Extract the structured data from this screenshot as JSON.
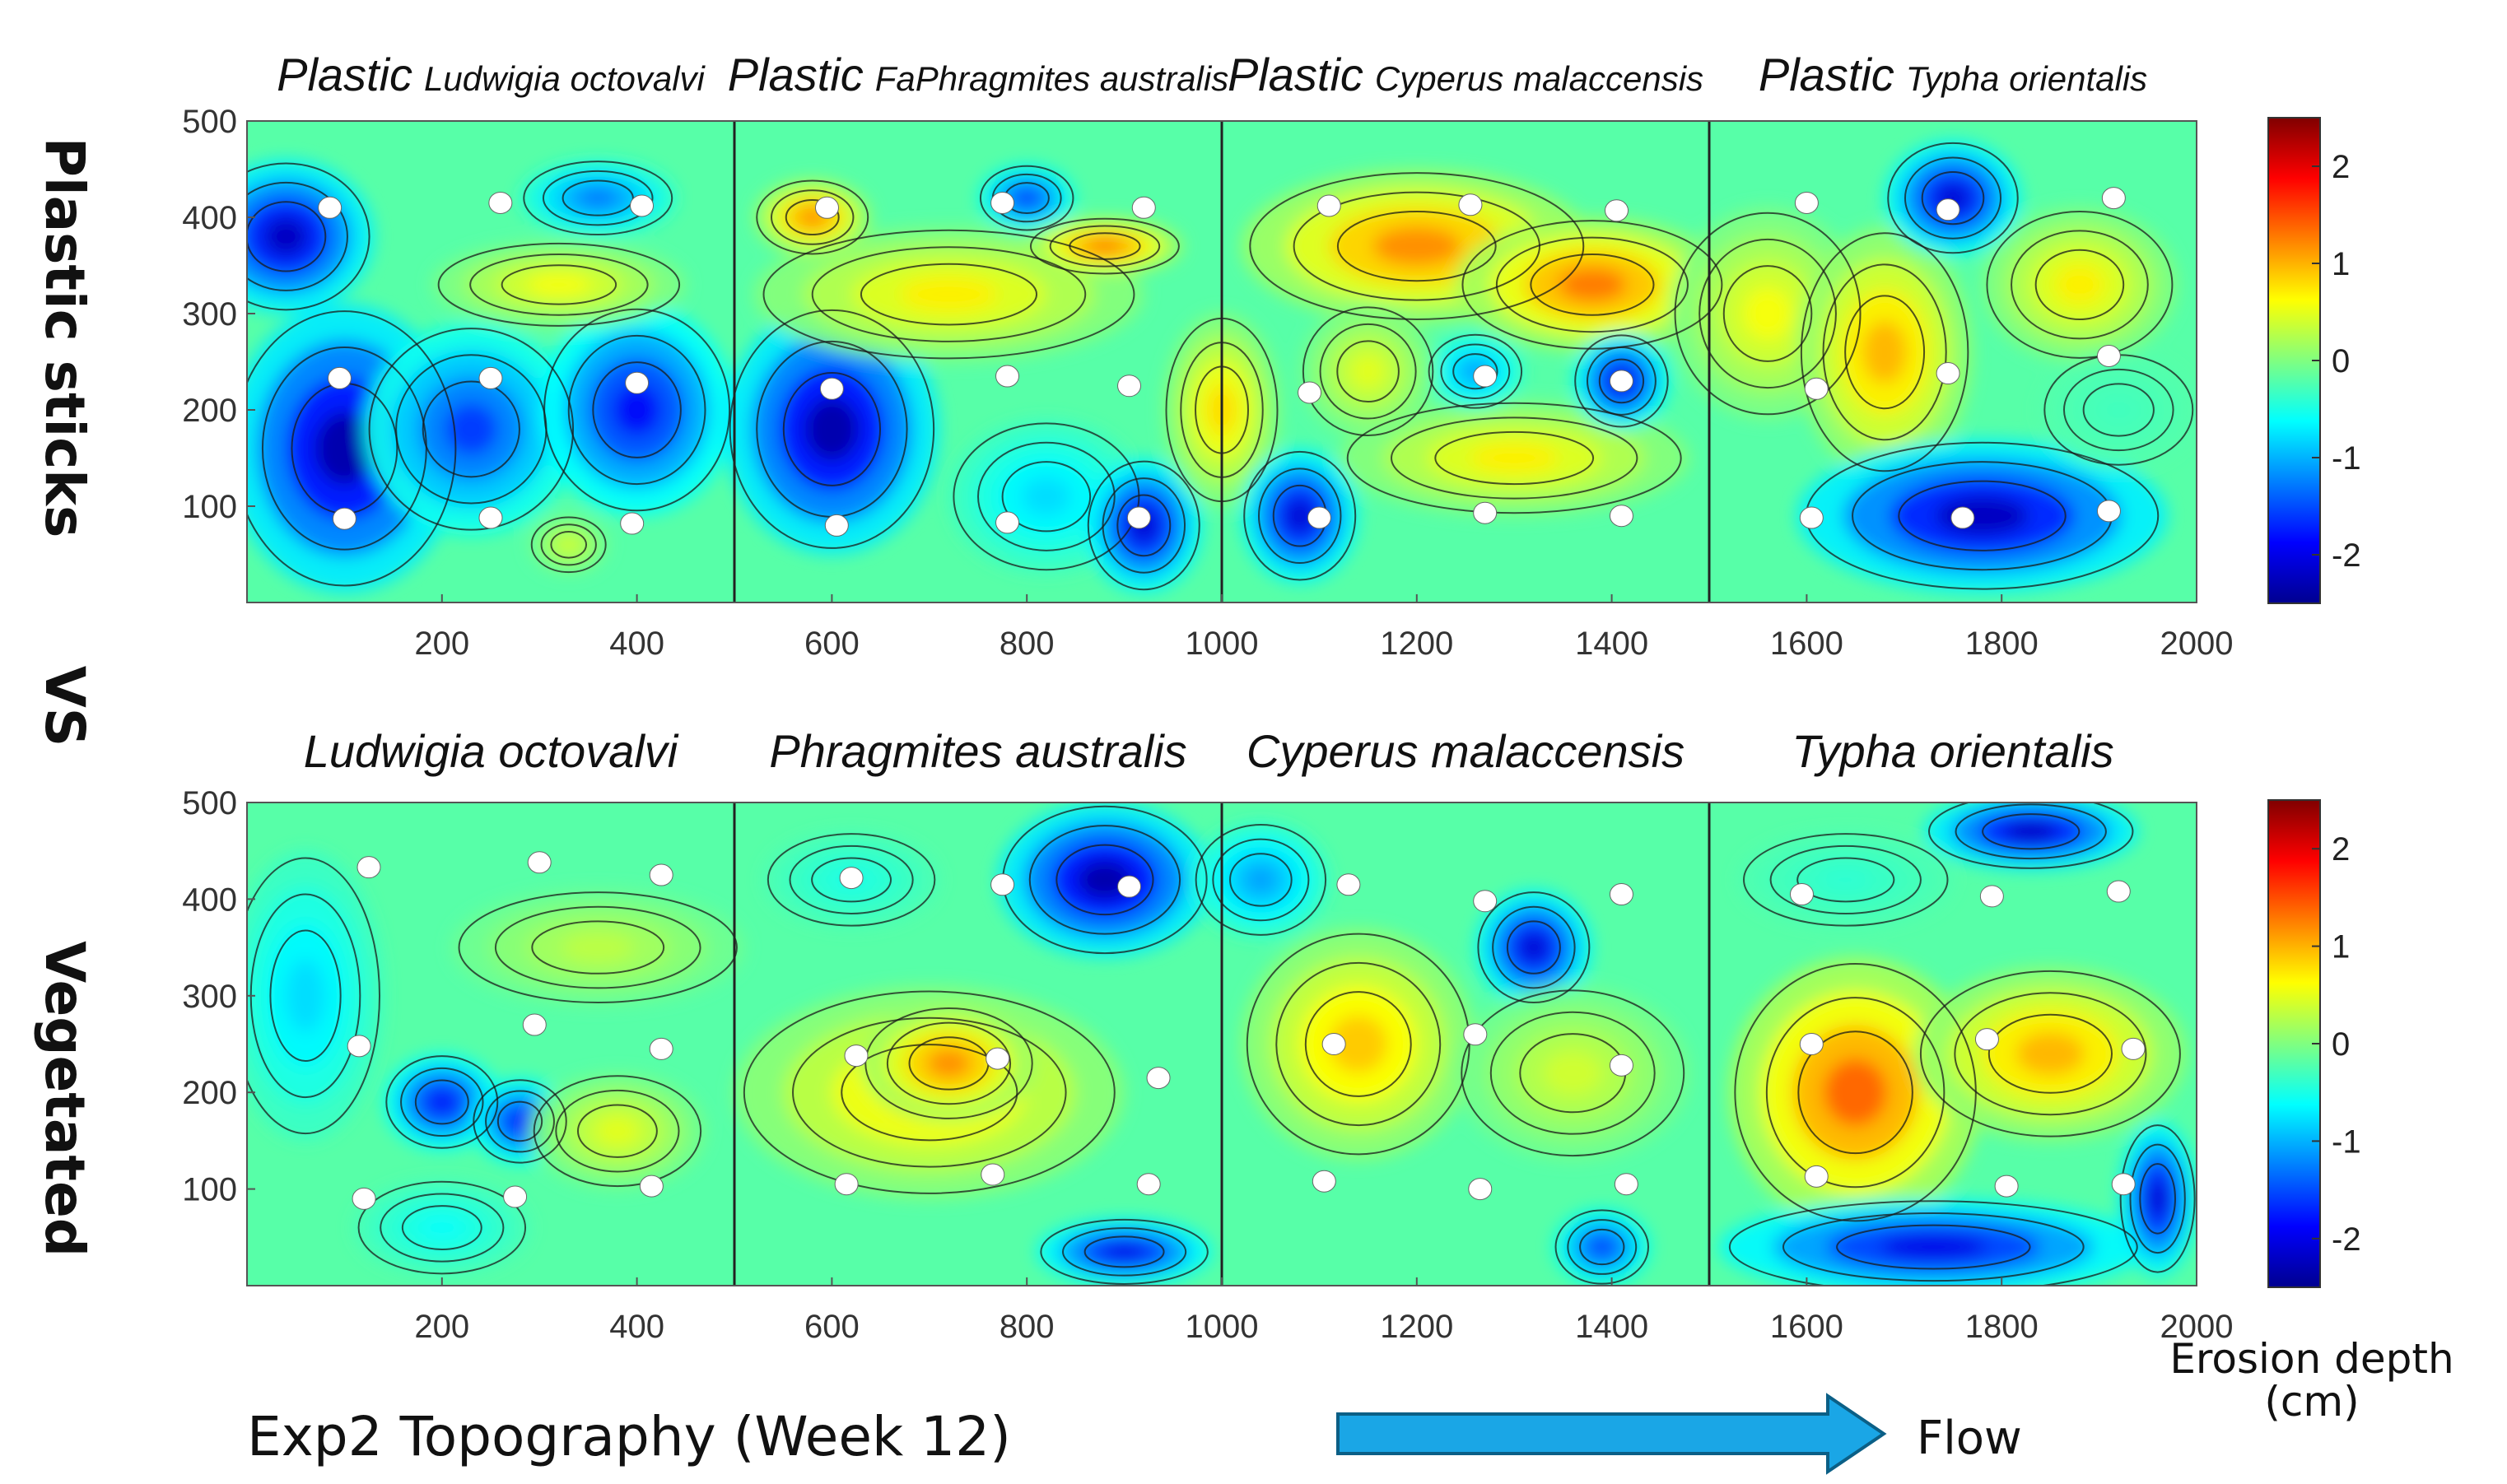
{
  "colors": {
    "flow_arrow": "#1aa6e6",
    "flow_arrow_stroke": "#0b5f86",
    "colormap": "jet"
  },
  "labels": {
    "row_top": "Plastic sticks",
    "vs": "VS",
    "row_bottom": "Vegetated",
    "figure_title": "Exp2 Topography (Week 12)",
    "flow": "Flow",
    "colorbar_line1": "Erosion depth",
    "colorbar_line2": "(cm)"
  },
  "chart_data": [
    {
      "type": "heatmap",
      "id": "plastic",
      "plot_type": "filled contour",
      "xlim": [
        0,
        2000
      ],
      "ylim": [
        0,
        500
      ],
      "xticks": [
        200,
        400,
        600,
        800,
        1000,
        1200,
        1400,
        1600,
        1800,
        2000
      ],
      "yticks": [
        100,
        200,
        300,
        400,
        500
      ],
      "panel_dividers_x": [
        500,
        1000,
        1500
      ],
      "section_titles": [
        {
          "prefix": "Plastic",
          "species": "Ludwigia octovalvi",
          "x_center": 250
        },
        {
          "prefix": "Plastic",
          "species": "FaPhragmites australis",
          "x_center": 750
        },
        {
          "prefix": "Plastic",
          "species": "Cyperus malaccensis",
          "x_center": 1250
        },
        {
          "prefix": "Plastic",
          "species": "Typha orientalis",
          "x_center": 1750
        }
      ],
      "colorbar": {
        "range": [
          -2.5,
          2.5
        ],
        "ticks": [
          2,
          1,
          0,
          -1,
          -2
        ],
        "colormap": "jet"
      },
      "value_regions": [
        {
          "x": 40,
          "y": 380,
          "rx": 90,
          "ry": 80,
          "value": -2.2
        },
        {
          "x": 100,
          "y": 160,
          "rx": 120,
          "ry": 150,
          "value": -2.3
        },
        {
          "x": 230,
          "y": 180,
          "rx": 110,
          "ry": 110,
          "value": -1.6
        },
        {
          "x": 400,
          "y": 200,
          "rx": 100,
          "ry": 110,
          "value": -1.9
        },
        {
          "x": 360,
          "y": 420,
          "rx": 80,
          "ry": 40,
          "value": -1.3
        },
        {
          "x": 320,
          "y": 330,
          "rx": 130,
          "ry": 45,
          "value": 0.6
        },
        {
          "x": 330,
          "y": 60,
          "rx": 40,
          "ry": 30,
          "value": 0.4
        },
        {
          "x": 600,
          "y": 180,
          "rx": 110,
          "ry": 130,
          "value": -2.3
        },
        {
          "x": 820,
          "y": 110,
          "rx": 100,
          "ry": 80,
          "value": -0.8
        },
        {
          "x": 920,
          "y": 80,
          "rx": 60,
          "ry": 70,
          "value": -2.1
        },
        {
          "x": 800,
          "y": 420,
          "rx": 50,
          "ry": 35,
          "value": -1.6
        },
        {
          "x": 720,
          "y": 320,
          "rx": 200,
          "ry": 70,
          "value": 0.7
        },
        {
          "x": 580,
          "y": 400,
          "rx": 60,
          "ry": 40,
          "value": 1.2
        },
        {
          "x": 880,
          "y": 370,
          "rx": 80,
          "ry": 30,
          "value": 1.3
        },
        {
          "x": 1000,
          "y": 200,
          "rx": 60,
          "ry": 100,
          "value": 0.8
        },
        {
          "x": 1080,
          "y": 90,
          "rx": 60,
          "ry": 70,
          "value": -2.1
        },
        {
          "x": 1200,
          "y": 370,
          "rx": 180,
          "ry": 80,
          "value": 1.2
        },
        {
          "x": 1380,
          "y": 330,
          "rx": 140,
          "ry": 70,
          "value": 1.3
        },
        {
          "x": 1300,
          "y": 150,
          "rx": 180,
          "ry": 60,
          "value": 0.7
        },
        {
          "x": 1260,
          "y": 240,
          "rx": 50,
          "ry": 40,
          "value": -1.1
        },
        {
          "x": 1410,
          "y": 230,
          "rx": 50,
          "ry": 50,
          "value": -2.0
        },
        {
          "x": 1150,
          "y": 240,
          "rx": 70,
          "ry": 70,
          "value": 0.5
        },
        {
          "x": 1560,
          "y": 300,
          "rx": 100,
          "ry": 110,
          "value": 0.6
        },
        {
          "x": 1680,
          "y": 260,
          "rx": 90,
          "ry": 130,
          "value": 1.0
        },
        {
          "x": 1750,
          "y": 420,
          "rx": 70,
          "ry": 60,
          "value": -2.1
        },
        {
          "x": 1780,
          "y": 90,
          "rx": 190,
          "ry": 80,
          "value": -2.2
        },
        {
          "x": 1880,
          "y": 330,
          "rx": 100,
          "ry": 80,
          "value": 0.7
        },
        {
          "x": 1920,
          "y": 200,
          "rx": 80,
          "ry": 60,
          "value": -0.3
        }
      ],
      "markers": [
        [
          85,
          410
        ],
        [
          260,
          415
        ],
        [
          405,
          412
        ],
        [
          95,
          233
        ],
        [
          250,
          233
        ],
        [
          400,
          228
        ],
        [
          100,
          87
        ],
        [
          250,
          88
        ],
        [
          395,
          82
        ],
        [
          595,
          410
        ],
        [
          775,
          415
        ],
        [
          920,
          410
        ],
        [
          600,
          222
        ],
        [
          780,
          235
        ],
        [
          905,
          225
        ],
        [
          605,
          80
        ],
        [
          780,
          83
        ],
        [
          915,
          88
        ],
        [
          1110,
          412
        ],
        [
          1255,
          413
        ],
        [
          1405,
          407
        ],
        [
          1600,
          415
        ],
        [
          1745,
          408
        ],
        [
          1915,
          420
        ],
        [
          1090,
          218
        ],
        [
          1270,
          235
        ],
        [
          1410,
          230
        ],
        [
          1610,
          222
        ],
        [
          1745,
          238
        ],
        [
          1910,
          256
        ],
        [
          1100,
          88
        ],
        [
          1270,
          93
        ],
        [
          1410,
          90
        ],
        [
          1605,
          88
        ],
        [
          1760,
          88
        ],
        [
          1910,
          95
        ]
      ]
    },
    {
      "type": "heatmap",
      "id": "vegetated",
      "plot_type": "filled contour",
      "xlim": [
        0,
        2000
      ],
      "ylim": [
        0,
        500
      ],
      "xticks": [
        200,
        400,
        600,
        800,
        1000,
        1200,
        1400,
        1600,
        1800,
        2000
      ],
      "yticks": [
        100,
        200,
        300,
        400,
        500
      ],
      "panel_dividers_x": [
        500,
        1000,
        1500
      ],
      "section_titles": [
        {
          "prefix": "",
          "species": "Ludwigia octovalvi",
          "x_center": 250
        },
        {
          "prefix": "",
          "species": "Phragmites australis",
          "x_center": 750
        },
        {
          "prefix": "",
          "species": "Cyperus malaccensis",
          "x_center": 1250
        },
        {
          "prefix": "",
          "species": "Typha orientalis",
          "x_center": 1750
        }
      ],
      "colorbar": {
        "range": [
          -2.5,
          2.5
        ],
        "ticks": [
          2,
          1,
          0,
          -1,
          -2
        ],
        "colormap": "jet"
      },
      "value_regions": [
        {
          "x": 60,
          "y": 300,
          "rx": 80,
          "ry": 150,
          "value": -0.8
        },
        {
          "x": 200,
          "y": 190,
          "rx": 60,
          "ry": 50,
          "value": -1.9
        },
        {
          "x": 280,
          "y": 170,
          "rx": 50,
          "ry": 45,
          "value": -1.8
        },
        {
          "x": 360,
          "y": 350,
          "rx": 150,
          "ry": 60,
          "value": 0.3
        },
        {
          "x": 380,
          "y": 160,
          "rx": 90,
          "ry": 60,
          "value": 0.5
        },
        {
          "x": 200,
          "y": 60,
          "rx": 90,
          "ry": 50,
          "value": -0.6
        },
        {
          "x": 880,
          "y": 420,
          "rx": 110,
          "ry": 80,
          "value": -2.3
        },
        {
          "x": 700,
          "y": 200,
          "rx": 200,
          "ry": 110,
          "value": 0.8
        },
        {
          "x": 720,
          "y": 230,
          "rx": 90,
          "ry": 60,
          "value": 1.2
        },
        {
          "x": 900,
          "y": 35,
          "rx": 90,
          "ry": 35,
          "value": -2.0
        },
        {
          "x": 620,
          "y": 420,
          "rx": 90,
          "ry": 50,
          "value": -0.5
        },
        {
          "x": 1040,
          "y": 420,
          "rx": 70,
          "ry": 60,
          "value": -1.1
        },
        {
          "x": 1140,
          "y": 250,
          "rx": 120,
          "ry": 120,
          "value": 0.9
        },
        {
          "x": 1320,
          "y": 350,
          "rx": 60,
          "ry": 60,
          "value": -2.1
        },
        {
          "x": 1360,
          "y": 220,
          "rx": 120,
          "ry": 90,
          "value": 0.4
        },
        {
          "x": 1390,
          "y": 40,
          "rx": 50,
          "ry": 40,
          "value": -1.6
        },
        {
          "x": 1650,
          "y": 200,
          "rx": 130,
          "ry": 140,
          "value": 1.4
        },
        {
          "x": 1850,
          "y": 240,
          "rx": 140,
          "ry": 90,
          "value": 1.0
        },
        {
          "x": 1730,
          "y": 40,
          "rx": 220,
          "ry": 50,
          "value": -2.0
        },
        {
          "x": 1960,
          "y": 90,
          "rx": 40,
          "ry": 80,
          "value": -2.1
        },
        {
          "x": 1830,
          "y": 470,
          "rx": 110,
          "ry": 40,
          "value": -2.2
        },
        {
          "x": 1640,
          "y": 420,
          "rx": 110,
          "ry": 50,
          "value": -0.4
        }
      ],
      "markers": [
        [
          125,
          433
        ],
        [
          300,
          438
        ],
        [
          425,
          425
        ],
        [
          115,
          248
        ],
        [
          295,
          270
        ],
        [
          425,
          245
        ],
        [
          120,
          90
        ],
        [
          275,
          92
        ],
        [
          415,
          103
        ],
        [
          620,
          422
        ],
        [
          775,
          415
        ],
        [
          905,
          413
        ],
        [
          625,
          238
        ],
        [
          770,
          235
        ],
        [
          935,
          215
        ],
        [
          615,
          105
        ],
        [
          765,
          115
        ],
        [
          925,
          105
        ],
        [
          1130,
          415
        ],
        [
          1270,
          398
        ],
        [
          1410,
          405
        ],
        [
          1595,
          405
        ],
        [
          1790,
          403
        ],
        [
          1920,
          408
        ],
        [
          1115,
          250
        ],
        [
          1260,
          260
        ],
        [
          1410,
          228
        ],
        [
          1605,
          250
        ],
        [
          1785,
          255
        ],
        [
          1935,
          245
        ],
        [
          1105,
          108
        ],
        [
          1265,
          100
        ],
        [
          1415,
          105
        ],
        [
          1610,
          113
        ],
        [
          1805,
          103
        ],
        [
          1925,
          105
        ]
      ]
    }
  ]
}
